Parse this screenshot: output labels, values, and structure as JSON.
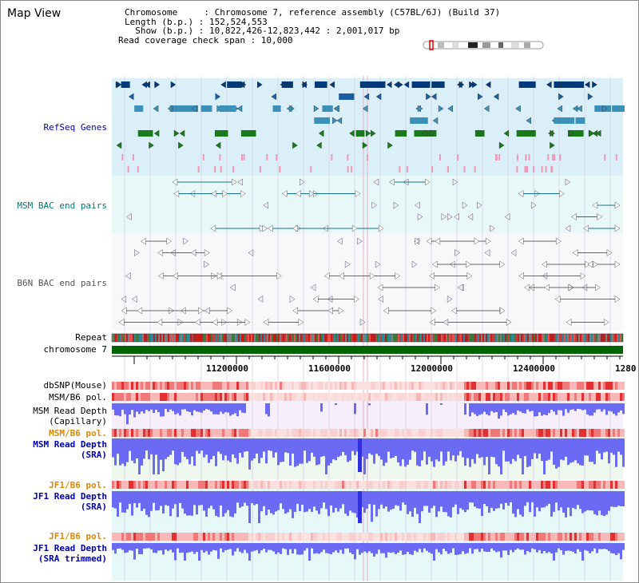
{
  "header": {
    "view_title": "Map View",
    "chromosome_line": "Chromosome     : Chromosome 7, reference assembly (C57BL/6J) (Build 37)",
    "length_line": "Length (b.p.) : 152,524,553",
    "show_line": "  Show (b.p.) : 10,822,426-12,823,442 : 2,001,017 bp",
    "coverage_line": "Read coverage check span : 10,000"
  },
  "tracks": {
    "refseq": "RefSeq Genes",
    "msm_bac": "MSM BAC end pairs",
    "b6n_bac": "B6N BAC end pairs",
    "repeat": "Repeat",
    "chromosome": "chromosome 7",
    "dbsnp": "dbSNP(Mouse)",
    "msm_b6_pol_1": "MSM/B6 pol.",
    "msm_cap_1": "MSM Read Depth",
    "msm_cap_2": "(Capillary)",
    "msm_b6_pol_2": "MSM/B6 pol.",
    "msm_sra_1": "MSM Read Depth",
    "msm_sra_2": "(SRA)",
    "jf1_b6_pol_1": "JF1/B6 pol.",
    "jf1_sra_1": "JF1 Read Depth",
    "jf1_sra_2": "(SRA)",
    "jf1_b6_pol_2": "JF1/B6 pol.",
    "jf1_trim_1": "JF1 Read Depth",
    "jf1_trim_2": "(SRA trimmed)"
  },
  "axis": {
    "ticks": [
      "11200000",
      "11600000",
      "12000000",
      "12400000",
      "1280"
    ]
  },
  "colors": {
    "label_blue": "#0000aa",
    "label_teal": "#007777",
    "label_grey": "#555555",
    "label_orange": "#dd8800",
    "chromosome_green": "#006400",
    "depth_blue": "#6a6af5",
    "pol_red": "#e83030"
  }
}
